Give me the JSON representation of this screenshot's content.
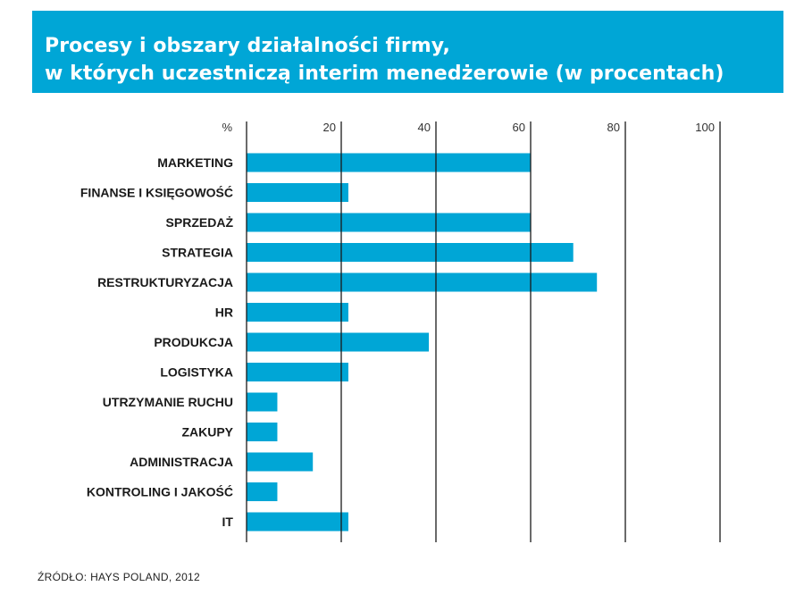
{
  "title_lines": [
    "Procesy i obszary działalności firmy,",
    "w których uczestniczą interim menedżerowie (w procentach)"
  ],
  "source": "ŹRÓDŁO: HAYS POLAND, 2012",
  "colors": {
    "accent": "#00a6d6",
    "text": "#1a1a1a",
    "grid": "#1a1a1a"
  },
  "chart_data": {
    "type": "bar",
    "orientation": "horizontal",
    "unit_label": "%",
    "x_ticks": [
      20,
      40,
      60,
      80,
      100
    ],
    "xlim": [
      0,
      100
    ],
    "grid": true,
    "categories": [
      "MARKETING",
      "FINANSE I KSIĘGOWOŚĆ",
      "SPRZEDAŻ",
      "STRATEGIA",
      "RESTRUKTURYZACJA",
      "HR",
      "PRODUKCJA",
      "LOGISTYKA",
      "UTRZYMANIE RUCHU",
      "ZAKUPY",
      "ADMINISTRACJA",
      "KONTROLING I JAKOŚĆ",
      "IT"
    ],
    "values": [
      60,
      21.5,
      60,
      69,
      74,
      21.5,
      38.5,
      21.5,
      6.5,
      6.5,
      14,
      6.5,
      21.5
    ]
  }
}
